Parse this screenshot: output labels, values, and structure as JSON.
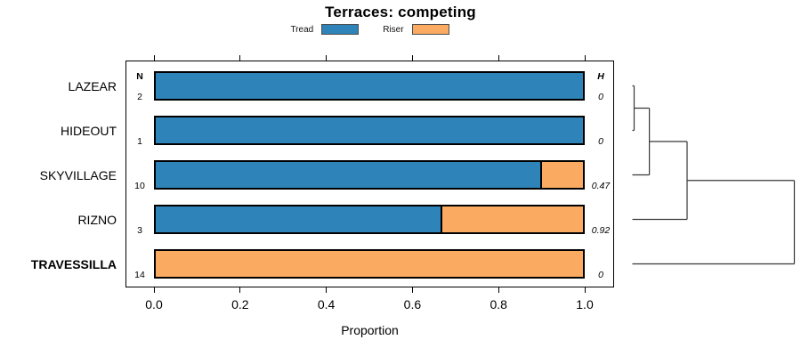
{
  "title": "Terraces: competing",
  "legend": [
    {
      "label": "Tread",
      "color": "#2E84B8"
    },
    {
      "label": "Riser",
      "color": "#FAAB61"
    }
  ],
  "chart_data": {
    "type": "bar",
    "orientation": "horizontal",
    "stacked": true,
    "title": "Terraces: competing",
    "xlabel": "Proportion",
    "xlim": [
      0,
      1
    ],
    "xticks": [
      "0.0",
      "0.2",
      "0.4",
      "0.6",
      "0.8",
      "1.0"
    ],
    "grid": false,
    "legend_position": "top",
    "categories": [
      "LAZEAR",
      "HIDEOUT",
      "SKYVILLAGE",
      "RIZNO",
      "TRAVESSILLA"
    ],
    "emphasized_category": "TRAVESSILLA",
    "series": [
      {
        "name": "Tread",
        "color": "#2E84B8",
        "values": [
          1.0,
          1.0,
          0.9,
          0.667,
          0.0
        ]
      },
      {
        "name": "Riser",
        "color": "#FAAB61",
        "values": [
          0.0,
          0.0,
          0.1,
          0.333,
          1.0
        ]
      }
    ],
    "counts": {
      "label": "N",
      "values": [
        "2",
        "1",
        "10",
        "3",
        "14"
      ]
    },
    "heterogeneity": {
      "label": "H",
      "values": [
        "0",
        "0",
        "0.47",
        "0.92",
        "0"
      ]
    },
    "dendrogram": {
      "leaf_order": [
        "LAZEAR",
        "HIDEOUT",
        "SKYVILLAGE",
        "RIZNO",
        "TRAVESSILLA"
      ],
      "merges": [
        {
          "children": [
            "LAZEAR",
            "HIDEOUT"
          ],
          "height": 0.011
        },
        {
          "children": [
            "merge0",
            "SKYVILLAGE"
          ],
          "height": 0.105
        },
        {
          "children": [
            "merge1",
            "RIZNO"
          ],
          "height": 0.338
        },
        {
          "children": [
            "merge2",
            "TRAVESSILLA"
          ],
          "height": 1.0
        }
      ]
    }
  }
}
